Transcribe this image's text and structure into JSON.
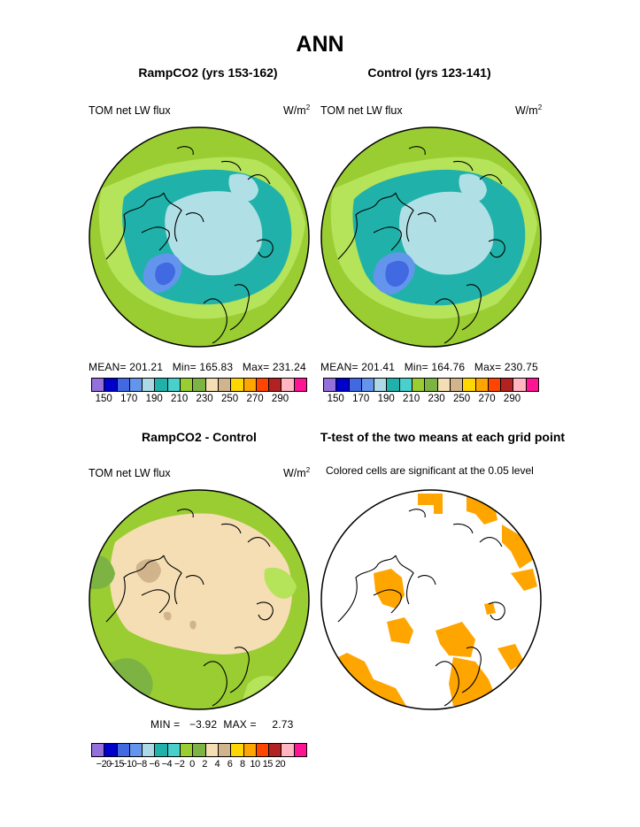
{
  "title": "ANN",
  "panels": {
    "top_left": {
      "title": "RampCO2 (yrs 153-162)",
      "field_label": "TOM net LW flux",
      "units_base": "W/m",
      "units_exp": "2",
      "stats": "MEAN= 201.21   Min= 165.83   Max= 231.24"
    },
    "top_right": {
      "title": "Control (yrs 123-141)",
      "field_label": "TOM net LW flux",
      "units_base": "W/m",
      "units_exp": "2",
      "stats": "MEAN= 201.41   Min= 164.76   Max= 230.75"
    },
    "bottom_left": {
      "title": "RampCO2 - Control",
      "field_label": "TOM net LW flux",
      "units_base": "W/m",
      "units_exp": "2",
      "stats": "MIN =   −3.92  MAX =     2.73"
    },
    "bottom_right": {
      "title": "T-test of the two means at each grid point",
      "note": "Colored cells are significant at the 0.05 level",
      "sig_color": "#ffa500"
    }
  },
  "colorbar_flux": {
    "colors": [
      "#9370db",
      "#0000cd",
      "#4169e1",
      "#6495ed",
      "#add8e6",
      "#20b2aa",
      "#48d1cc",
      "#9acd32",
      "#7cb342",
      "#f5deb3",
      "#d2b48c",
      "#ffd700",
      "#ffa500",
      "#ff4500",
      "#b22222",
      "#ffb6c1",
      "#ff1493"
    ],
    "labels": [
      "150",
      "170",
      "190",
      "210",
      "230",
      "250",
      "270",
      "290"
    ]
  },
  "colorbar_diff": {
    "colors": [
      "#9370db",
      "#0000cd",
      "#4169e1",
      "#6495ed",
      "#add8e6",
      "#20b2aa",
      "#48d1cc",
      "#9acd32",
      "#7cb342",
      "#f5deb3",
      "#d2b48c",
      "#ffd700",
      "#ffa500",
      "#ff4500",
      "#b22222",
      "#ffb6c1",
      "#ff1493"
    ],
    "labels": [
      "−20",
      "−15",
      "−10",
      "−8",
      "−6",
      "−4",
      "−2",
      "0",
      "2",
      "4",
      "6",
      "8",
      "10",
      "15",
      "20"
    ]
  },
  "map_colors": {
    "green_outer": "#9acd32",
    "green_light": "#b5e35a",
    "teal": "#20b2aa",
    "light_blue": "#b0e0e6",
    "blue": "#4169e1",
    "mid_blue": "#6495ed",
    "tan": "#f5deb3",
    "brown": "#d2b48c",
    "orange": "#ffa500"
  }
}
